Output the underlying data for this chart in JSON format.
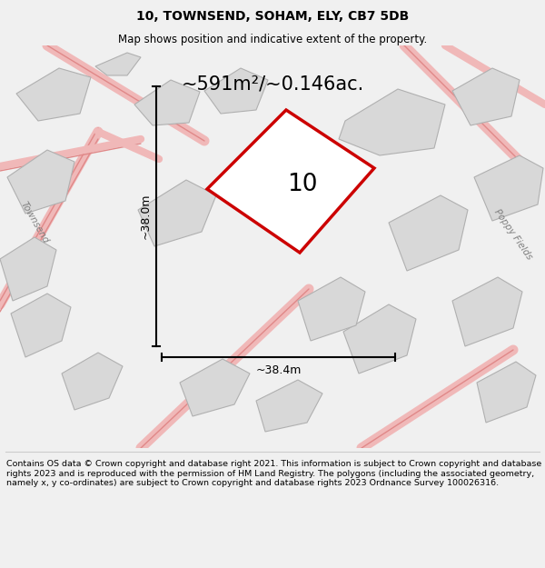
{
  "title": "10, TOWNSEND, SOHAM, ELY, CB7 5DB",
  "subtitle": "Map shows position and indicative extent of the property.",
  "area_text": "~591m²/~0.146ac.",
  "label_number": "10",
  "dim_width": "~38.4m",
  "dim_height": "~38.0m",
  "road_label_left": "Townsend",
  "road_label_right": "Poppy Fields",
  "footer": "Contains OS data © Crown copyright and database right 2021. This information is subject to Crown copyright and database rights 2023 and is reproduced with the permission of HM Land Registry. The polygons (including the associated geometry, namely x, y co-ordinates) are subject to Crown copyright and database rights 2023 Ordnance Survey 100026316.",
  "bg_color": "#f0f0f0",
  "map_bg": "#f0f0f0",
  "building_fill": "#d8d8d8",
  "building_edge": "#b0b0b0",
  "road_color": "#e8a0a0",
  "road_lw": 1.5,
  "highlight_fill": "#ffffff",
  "highlight_edge": "#cc0000",
  "highlight_lw": 2.5,
  "dim_color": "#222222",
  "text_color": "#000000",
  "footer_fontsize": 6.8,
  "title_fontsize": 10,
  "subtitle_fontsize": 8.5
}
